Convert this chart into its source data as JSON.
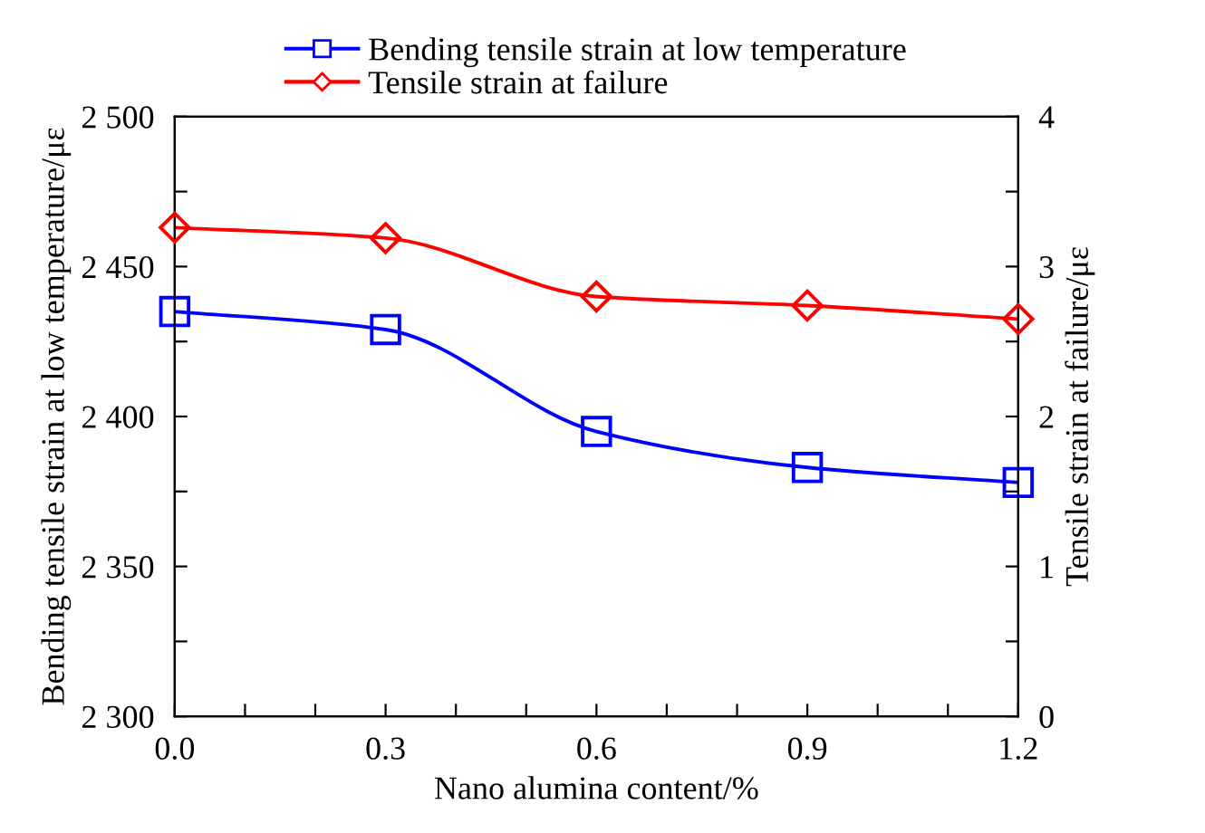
{
  "chart_data": {
    "type": "line",
    "xlabel": "Nano alumina content/%",
    "ylabel": "Bending tensile strain at low temperature/με",
    "y2label": "Tensile strain at failure/με",
    "x": [
      0,
      0.3,
      0.6,
      0.9,
      1.2
    ],
    "series": [
      {
        "name": "Bending tensile strain at low temperature",
        "color": "#0000ff",
        "values": [
          2435,
          2429,
          2395,
          2383,
          2378
        ],
        "marker": "square"
      },
      {
        "name": "Tensile strain at failure",
        "color": "#ff0000",
        "values": [
          3.26,
          3.19,
          2.8,
          2.74,
          2.65
        ],
        "marker": "diamond",
        "axis": "y2"
      }
    ],
    "xlim": [
      0,
      1.2
    ],
    "xticks": [
      {
        "value": 0,
        "label": "0.0"
      },
      {
        "value": 0.1,
        "label": null
      },
      {
        "value": 0.2,
        "label": null
      },
      {
        "value": 0.3,
        "label": "0.3"
      },
      {
        "value": 0.4,
        "label": null
      },
      {
        "value": 0.5,
        "label": null
      },
      {
        "value": 0.6,
        "label": "0.6"
      },
      {
        "value": 0.7,
        "label": null
      },
      {
        "value": 0.8,
        "label": null
      },
      {
        "value": 0.9,
        "label": "0.9"
      },
      {
        "value": 1.0,
        "label": null
      },
      {
        "value": 1.1,
        "label": null
      },
      {
        "value": 1.2,
        "label": "1.2"
      }
    ],
    "ylim": [
      2300,
      2500
    ],
    "yticks": [
      {
        "value": 2300,
        "label": "2 300"
      },
      {
        "value": 2325,
        "label": null
      },
      {
        "value": 2350,
        "label": "2 350"
      },
      {
        "value": 2375,
        "label": null
      },
      {
        "value": 2400,
        "label": "2 400"
      },
      {
        "value": 2425,
        "label": null
      },
      {
        "value": 2450,
        "label": "2 450"
      },
      {
        "value": 2475,
        "label": null
      },
      {
        "value": 2500,
        "label": "2 500"
      }
    ],
    "y2lim": [
      0,
      4
    ],
    "y2ticks": [
      0,
      {
        "value": 0.5,
        "label": null
      },
      1,
      {
        "value": 1.5,
        "label": null
      },
      2,
      {
        "value": 2.5,
        "label": null
      },
      3,
      {
        "value": 3.5,
        "label": null
      },
      4
    ],
    "grid": false,
    "legend": "top",
    "line_style": "solid"
  }
}
